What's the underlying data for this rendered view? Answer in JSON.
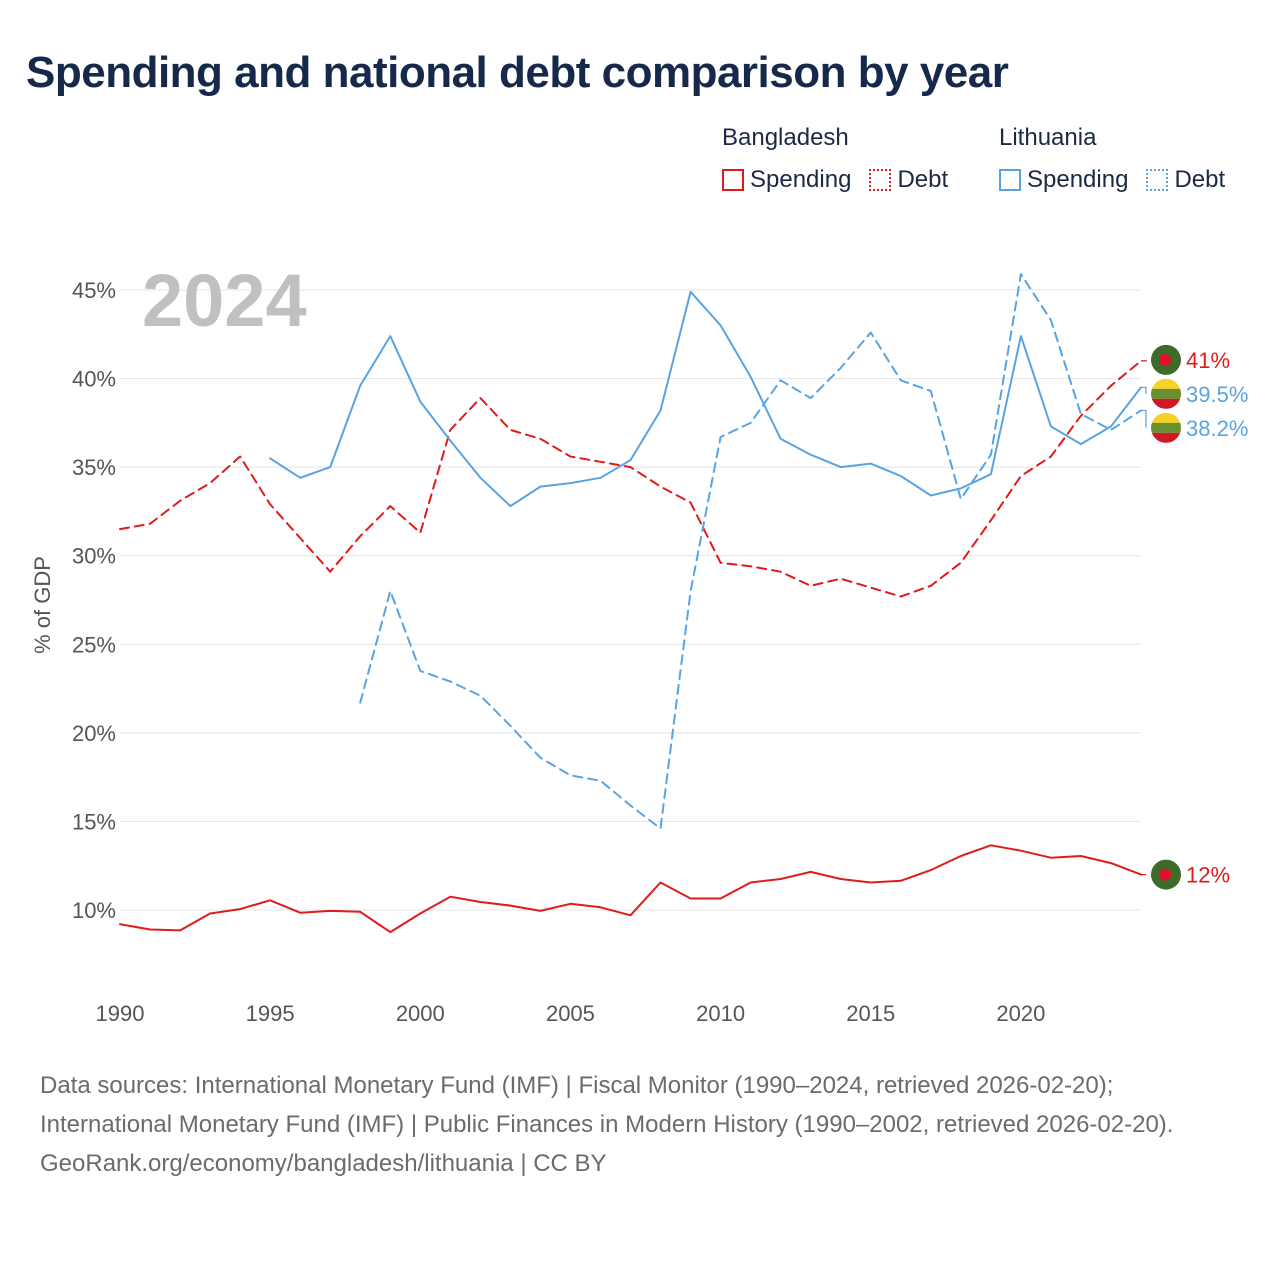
{
  "title": "Spending and national debt comparison by year",
  "legend": {
    "groups": [
      {
        "country": "Bangladesh",
        "items": [
          {
            "label": "Spending",
            "style": "solid"
          },
          {
            "label": "Debt",
            "style": "dotted"
          }
        ],
        "color": "#e01b1b"
      },
      {
        "country": "Lithuania",
        "items": [
          {
            "label": "Spending",
            "style": "solid"
          },
          {
            "label": "Debt",
            "style": "dotted"
          }
        ],
        "color": "#5aa3e0"
      }
    ]
  },
  "chart_data": {
    "type": "line",
    "title": "Spending and national debt comparison by year",
    "year_label": "2024",
    "xlabel": "",
    "ylabel": "% of GDP",
    "xlim": [
      1990,
      2024
    ],
    "ylim": [
      7,
      47
    ],
    "x_ticks": [
      1990,
      1995,
      2000,
      2005,
      2010,
      2015,
      2020
    ],
    "y_ticks": [
      10,
      15,
      20,
      25,
      30,
      35,
      40,
      45
    ],
    "y_tick_labels": [
      "10%",
      "15%",
      "20%",
      "25%",
      "30%",
      "35%",
      "40%",
      "45%"
    ],
    "grid": true,
    "series": [
      {
        "name": "Bangladesh Spending",
        "country": "Bangladesh",
        "measure": "Spending",
        "color": "#e01b1b",
        "dash": "solid",
        "end_label": "12%",
        "x": [
          1990,
          1991,
          1992,
          1993,
          1994,
          1995,
          1996,
          1997,
          1998,
          1999,
          2000,
          2001,
          2002,
          2003,
          2004,
          2005,
          2006,
          2007,
          2008,
          2009,
          2010,
          2011,
          2012,
          2013,
          2014,
          2015,
          2016,
          2017,
          2018,
          2019,
          2020,
          2021,
          2022,
          2023,
          2024
        ],
        "values": [
          9.2,
          8.9,
          8.85,
          9.8,
          10.05,
          10.55,
          9.85,
          9.95,
          9.9,
          8.75,
          9.8,
          10.75,
          10.45,
          10.25,
          9.95,
          10.35,
          10.15,
          9.7,
          11.55,
          10.65,
          10.65,
          11.55,
          11.75,
          12.15,
          11.75,
          11.55,
          11.65,
          12.25,
          13.05,
          13.65,
          13.35,
          12.95,
          13.05,
          12.65,
          12.0
        ]
      },
      {
        "name": "Bangladesh Debt",
        "country": "Bangladesh",
        "measure": "Debt",
        "color": "#e01b1b",
        "dash": "dashed",
        "end_label": "41%",
        "x": [
          1990,
          1991,
          1992,
          1993,
          1994,
          1995,
          1996,
          1997,
          1998,
          1999,
          2000,
          2001,
          2002,
          2003,
          2004,
          2005,
          2006,
          2007,
          2008,
          2009,
          2010,
          2011,
          2012,
          2013,
          2014,
          2015,
          2016,
          2017,
          2018,
          2019,
          2020,
          2021,
          2022,
          2023,
          2024
        ],
        "values": [
          31.5,
          31.8,
          33.1,
          34.1,
          35.6,
          32.9,
          31.0,
          29.1,
          31.1,
          32.8,
          31.3,
          37.1,
          38.9,
          37.1,
          36.6,
          35.6,
          35.3,
          35.0,
          33.9,
          33.0,
          29.6,
          29.4,
          29.1,
          28.3,
          28.7,
          28.2,
          27.7,
          28.3,
          29.6,
          32.0,
          34.5,
          35.6,
          37.9,
          39.6,
          41.0
        ]
      },
      {
        "name": "Lithuania Spending",
        "country": "Lithuania",
        "measure": "Spending",
        "color": "#5aa3e0",
        "dash": "solid",
        "end_label": "39.5%",
        "x": [
          1995,
          1996,
          1997,
          1998,
          1999,
          2000,
          2001,
          2002,
          2003,
          2004,
          2005,
          2006,
          2007,
          2008,
          2009,
          2010,
          2011,
          2012,
          2013,
          2014,
          2015,
          2016,
          2017,
          2018,
          2019,
          2020,
          2021,
          2022,
          2023,
          2024
        ],
        "values": [
          35.5,
          34.4,
          35.0,
          39.6,
          42.4,
          38.7,
          36.5,
          34.4,
          32.8,
          33.9,
          34.1,
          34.4,
          35.4,
          38.2,
          44.9,
          43.0,
          40.1,
          36.6,
          35.7,
          35.0,
          35.2,
          34.5,
          33.4,
          33.8,
          34.6,
          42.4,
          37.3,
          36.3,
          37.3,
          39.5
        ]
      },
      {
        "name": "Lithuania Debt",
        "country": "Lithuania",
        "measure": "Debt",
        "color": "#5aa3e0",
        "dash": "dashed",
        "end_label": "38.2%",
        "x": [
          1998,
          1999,
          2000,
          2001,
          2002,
          2003,
          2004,
          2005,
          2006,
          2007,
          2008,
          2009,
          2010,
          2011,
          2012,
          2013,
          2014,
          2015,
          2016,
          2017,
          2018,
          2019,
          2020,
          2021,
          2022,
          2023,
          2024
        ],
        "values": [
          21.7,
          28.0,
          23.5,
          22.9,
          22.1,
          20.4,
          18.6,
          17.6,
          17.3,
          15.9,
          14.6,
          28.0,
          36.7,
          37.5,
          39.9,
          38.9,
          40.6,
          42.6,
          39.9,
          39.3,
          33.2,
          35.7,
          45.9,
          43.3,
          38.0,
          37.1,
          38.2
        ]
      }
    ],
    "annotations": [
      "2024"
    ]
  },
  "footer": {
    "sources": "Data sources: International Monetary Fund (IMF) | Fiscal Monitor (1990–2024, retrieved 2026-02-20); International Monetary Fund (IMF) | Public Finances in Modern History (1990–2002, retrieved 2026-02-20).",
    "credit": "GeoRank.org/economy/bangladesh/lithuania | CC BY"
  },
  "colors": {
    "bangladesh": "#e01b1b",
    "lithuania": "#5aa3e0",
    "title": "#16294a",
    "grid": "#e4e4e4",
    "axis_text": "#555555",
    "year_watermark": "#c0c0c0",
    "flag_bd_green": "#3f6b2a",
    "flag_bd_red": "#e0102a",
    "flag_lt_yellow": "#f7d125",
    "flag_lt_green": "#6a8f2e",
    "flag_lt_red": "#d01828"
  }
}
